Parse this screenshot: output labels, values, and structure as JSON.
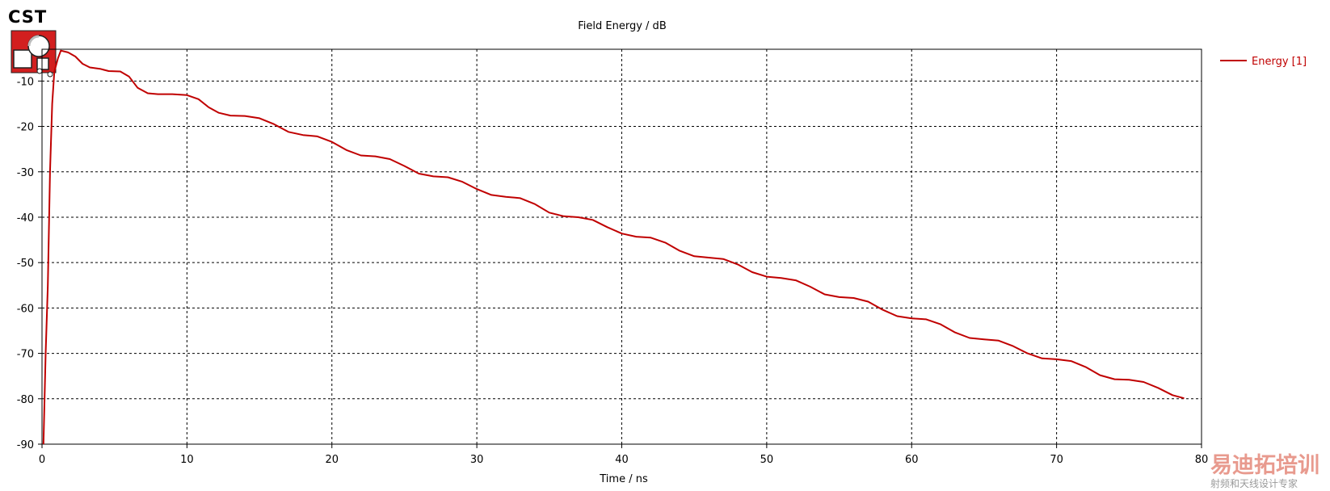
{
  "app": {
    "brand": "CST"
  },
  "chart_data": {
    "type": "line",
    "title": "Field Energy / dB",
    "xlabel": "Time / ns",
    "ylabel": "",
    "xlim": [
      0,
      80
    ],
    "ylim": [
      -90,
      -3
    ],
    "xticks": [
      0,
      10,
      20,
      30,
      40,
      50,
      60,
      70,
      80
    ],
    "yticks": [
      -10,
      -20,
      -30,
      -40,
      -50,
      -60,
      -70,
      -80,
      -90
    ],
    "grid": true,
    "legend_position": "top-right",
    "series": [
      {
        "name": "Energy [1]",
        "color": "#c00000",
        "points": [
          [
            0.1,
            -90
          ],
          [
            0.25,
            -70
          ],
          [
            0.4,
            -55
          ],
          [
            0.55,
            -30
          ],
          [
            0.7,
            -15
          ],
          [
            0.85,
            -8
          ],
          [
            1.1,
            -5
          ],
          [
            1.3,
            -3.3
          ],
          [
            1.8,
            -3.7
          ],
          [
            2.3,
            -4.6
          ],
          [
            2.8,
            -6.2
          ],
          [
            3.3,
            -7.0
          ],
          [
            4.0,
            -7.3
          ],
          [
            4.6,
            -7.8
          ],
          [
            5.4,
            -7.9
          ],
          [
            6.0,
            -9.0
          ],
          [
            6.6,
            -11.5
          ],
          [
            7.3,
            -12.7
          ],
          [
            8.0,
            -12.9
          ],
          [
            9.0,
            -12.9
          ],
          [
            10.0,
            -13.1
          ],
          [
            10.8,
            -14.0
          ],
          [
            11.5,
            -15.8
          ],
          [
            12.2,
            -17.0
          ],
          [
            13.0,
            -17.6
          ],
          [
            14.0,
            -17.7
          ],
          [
            15.0,
            -18.2
          ],
          [
            16.0,
            -19.5
          ],
          [
            17.0,
            -21.2
          ],
          [
            18.0,
            -21.9
          ],
          [
            19.0,
            -22.2
          ],
          [
            20.0,
            -23.4
          ],
          [
            21.0,
            -25.2
          ],
          [
            22.0,
            -26.4
          ],
          [
            23.0,
            -26.6
          ],
          [
            24.0,
            -27.2
          ],
          [
            25.0,
            -28.7
          ],
          [
            26.0,
            -30.4
          ],
          [
            27.0,
            -31.0
          ],
          [
            28.0,
            -31.2
          ],
          [
            29.0,
            -32.2
          ],
          [
            30.0,
            -33.8
          ],
          [
            31.0,
            -35.1
          ],
          [
            32.0,
            -35.5
          ],
          [
            33.0,
            -35.8
          ],
          [
            34.0,
            -37.1
          ],
          [
            35.0,
            -39.0
          ],
          [
            36.0,
            -39.8
          ],
          [
            37.0,
            -40.0
          ],
          [
            38.0,
            -40.6
          ],
          [
            39.0,
            -42.2
          ],
          [
            40.0,
            -43.6
          ],
          [
            41.0,
            -44.3
          ],
          [
            42.0,
            -44.5
          ],
          [
            43.0,
            -45.6
          ],
          [
            44.0,
            -47.4
          ],
          [
            45.0,
            -48.6
          ],
          [
            46.0,
            -48.9
          ],
          [
            47.0,
            -49.2
          ],
          [
            48.0,
            -50.4
          ],
          [
            49.0,
            -52.1
          ],
          [
            50.0,
            -53.1
          ],
          [
            51.0,
            -53.4
          ],
          [
            52.0,
            -53.9
          ],
          [
            53.0,
            -55.3
          ],
          [
            54.0,
            -57.0
          ],
          [
            55.0,
            -57.6
          ],
          [
            56.0,
            -57.8
          ],
          [
            57.0,
            -58.6
          ],
          [
            58.0,
            -60.4
          ],
          [
            59.0,
            -61.8
          ],
          [
            60.0,
            -62.3
          ],
          [
            61.0,
            -62.5
          ],
          [
            62.0,
            -63.6
          ],
          [
            63.0,
            -65.4
          ],
          [
            64.0,
            -66.6
          ],
          [
            65.0,
            -66.9
          ],
          [
            66.0,
            -67.2
          ],
          [
            67.0,
            -68.4
          ],
          [
            68.0,
            -70.0
          ],
          [
            69.0,
            -71.1
          ],
          [
            70.0,
            -71.3
          ],
          [
            71.0,
            -71.7
          ],
          [
            72.0,
            -73.0
          ],
          [
            73.0,
            -74.8
          ],
          [
            74.0,
            -75.7
          ],
          [
            75.0,
            -75.8
          ],
          [
            76.0,
            -76.3
          ],
          [
            77.0,
            -77.6
          ],
          [
            78.0,
            -79.2
          ],
          [
            78.8,
            -79.9
          ]
        ]
      }
    ]
  },
  "watermark": {
    "big": "易迪拓培训",
    "small": "射频和天线设计专家"
  }
}
